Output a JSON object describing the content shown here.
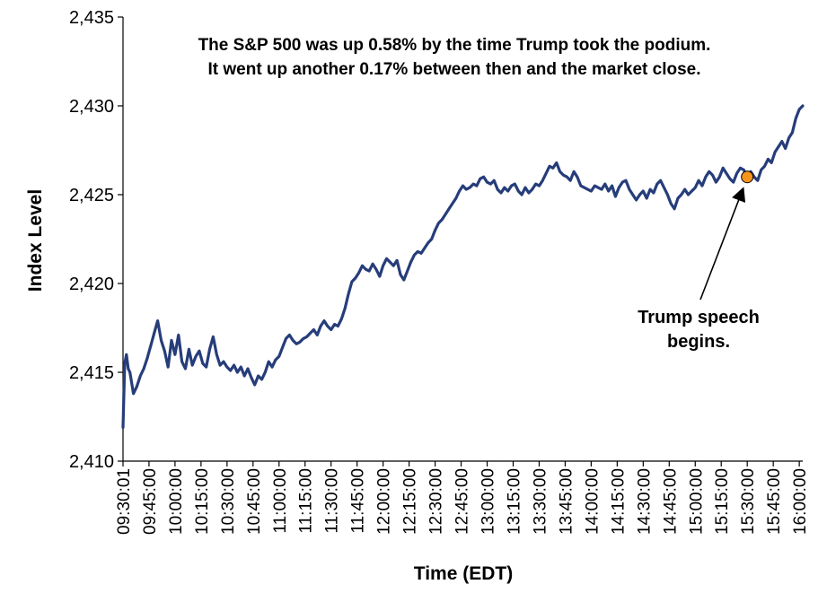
{
  "chart_data": {
    "type": "line",
    "title_lines": [
      "The S&P 500 was up 0.58% by the time Trump took the podium.",
      "It went up another 0.17% between then and the market close."
    ],
    "xlabel": "Time (EDT)",
    "ylabel": "Index Level",
    "ylim": [
      2410,
      2435
    ],
    "yticks": [
      2410,
      2415,
      2420,
      2425,
      2430,
      2435
    ],
    "ytick_labels": [
      "2,410",
      "2,415",
      "2,420",
      "2,425",
      "2,430",
      "2,435"
    ],
    "xlim": [
      "09:30:01",
      "16:02:00"
    ],
    "xtick_labels": [
      "09:30:01",
      "09:45:00",
      "10:00:00",
      "10:15:00",
      "10:30:00",
      "10:45:00",
      "11:00:00",
      "11:15:00",
      "11:30:00",
      "11:45:00",
      "12:00:00",
      "12:15:00",
      "12:30:00",
      "12:45:00",
      "13:00:00",
      "13:15:00",
      "13:30:00",
      "13:45:00",
      "14:00:00",
      "14:15:00",
      "14:30:00",
      "14:45:00",
      "15:00:00",
      "15:15:00",
      "15:30:00",
      "15:45:00",
      "16:00:00"
    ],
    "grid": false,
    "legend": "none",
    "series": [
      {
        "color": "#263d7a",
        "points": [
          [
            "09:30:01",
            2411.9
          ],
          [
            "09:31",
            2415.5
          ],
          [
            "09:32",
            2416.0
          ],
          [
            "09:33",
            2415.2
          ],
          [
            "09:34",
            2415.0
          ],
          [
            "09:36",
            2413.8
          ],
          [
            "09:38",
            2414.2
          ],
          [
            "09:40",
            2414.8
          ],
          [
            "09:42",
            2415.2
          ],
          [
            "09:44",
            2415.8
          ],
          [
            "09:46",
            2416.5
          ],
          [
            "09:48",
            2417.2
          ],
          [
            "09:50",
            2417.9
          ],
          [
            "09:52",
            2416.8
          ],
          [
            "09:54",
            2416.2
          ],
          [
            "09:56",
            2415.3
          ],
          [
            "09:58",
            2416.8
          ],
          [
            "10:00",
            2416.0
          ],
          [
            "10:02",
            2417.1
          ],
          [
            "10:04",
            2415.6
          ],
          [
            "10:06",
            2415.2
          ],
          [
            "10:08",
            2416.3
          ],
          [
            "10:10",
            2415.4
          ],
          [
            "10:12",
            2415.9
          ],
          [
            "10:14",
            2416.2
          ],
          [
            "10:16",
            2415.5
          ],
          [
            "10:18",
            2415.3
          ],
          [
            "10:20",
            2416.3
          ],
          [
            "10:22",
            2417.0
          ],
          [
            "10:24",
            2416.0
          ],
          [
            "10:26",
            2415.4
          ],
          [
            "10:28",
            2415.6
          ],
          [
            "10:30",
            2415.3
          ],
          [
            "10:32",
            2415.1
          ],
          [
            "10:34",
            2415.4
          ],
          [
            "10:36",
            2415.0
          ],
          [
            "10:38",
            2415.3
          ],
          [
            "10:40",
            2414.8
          ],
          [
            "10:42",
            2415.2
          ],
          [
            "10:44",
            2414.7
          ],
          [
            "10:46",
            2414.3
          ],
          [
            "10:48",
            2414.8
          ],
          [
            "10:50",
            2414.6
          ],
          [
            "10:52",
            2415.0
          ],
          [
            "10:54",
            2415.6
          ],
          [
            "10:56",
            2415.3
          ],
          [
            "10:58",
            2415.7
          ],
          [
            "11:00",
            2415.9
          ],
          [
            "11:02",
            2416.4
          ],
          [
            "11:04",
            2416.9
          ],
          [
            "11:06",
            2417.1
          ],
          [
            "11:08",
            2416.8
          ],
          [
            "11:10",
            2416.6
          ],
          [
            "11:12",
            2416.7
          ],
          [
            "11:14",
            2416.9
          ],
          [
            "11:16",
            2417.0
          ],
          [
            "11:18",
            2417.2
          ],
          [
            "11:20",
            2417.4
          ],
          [
            "11:22",
            2417.1
          ],
          [
            "11:24",
            2417.6
          ],
          [
            "11:26",
            2417.9
          ],
          [
            "11:28",
            2417.6
          ],
          [
            "11:30",
            2417.4
          ],
          [
            "11:32",
            2417.7
          ],
          [
            "11:34",
            2417.6
          ],
          [
            "11:36",
            2418.0
          ],
          [
            "11:38",
            2418.6
          ],
          [
            "11:40",
            2419.4
          ],
          [
            "11:42",
            2420.1
          ],
          [
            "11:44",
            2420.3
          ],
          [
            "11:46",
            2420.6
          ],
          [
            "11:48",
            2421.0
          ],
          [
            "11:50",
            2420.8
          ],
          [
            "11:52",
            2420.7
          ],
          [
            "11:54",
            2421.1
          ],
          [
            "11:56",
            2420.8
          ],
          [
            "11:58",
            2420.4
          ],
          [
            "12:00",
            2421.0
          ],
          [
            "12:02",
            2421.4
          ],
          [
            "12:04",
            2421.2
          ],
          [
            "12:06",
            2421.0
          ],
          [
            "12:08",
            2421.3
          ],
          [
            "12:10",
            2420.5
          ],
          [
            "12:12",
            2420.2
          ],
          [
            "12:14",
            2420.7
          ],
          [
            "12:16",
            2421.2
          ],
          [
            "12:18",
            2421.6
          ],
          [
            "12:20",
            2421.8
          ],
          [
            "12:22",
            2421.7
          ],
          [
            "12:24",
            2422.0
          ],
          [
            "12:26",
            2422.3
          ],
          [
            "12:28",
            2422.5
          ],
          [
            "12:30",
            2423.0
          ],
          [
            "12:32",
            2423.4
          ],
          [
            "12:34",
            2423.6
          ],
          [
            "12:36",
            2423.9
          ],
          [
            "12:38",
            2424.2
          ],
          [
            "12:40",
            2424.5
          ],
          [
            "12:42",
            2424.8
          ],
          [
            "12:44",
            2425.2
          ],
          [
            "12:46",
            2425.5
          ],
          [
            "12:48",
            2425.3
          ],
          [
            "12:50",
            2425.4
          ],
          [
            "12:52",
            2425.6
          ],
          [
            "12:54",
            2425.5
          ],
          [
            "12:56",
            2425.9
          ],
          [
            "12:58",
            2426.0
          ],
          [
            "13:00",
            2425.7
          ],
          [
            "13:02",
            2425.6
          ],
          [
            "13:04",
            2425.8
          ],
          [
            "13:06",
            2425.3
          ],
          [
            "13:08",
            2425.1
          ],
          [
            "13:10",
            2425.4
          ],
          [
            "13:12",
            2425.2
          ],
          [
            "13:14",
            2425.5
          ],
          [
            "13:16",
            2425.6
          ],
          [
            "13:18",
            2425.2
          ],
          [
            "13:20",
            2425.0
          ],
          [
            "13:22",
            2425.4
          ],
          [
            "13:24",
            2425.1
          ],
          [
            "13:26",
            2425.3
          ],
          [
            "13:28",
            2425.6
          ],
          [
            "13:30",
            2425.5
          ],
          [
            "13:32",
            2425.8
          ],
          [
            "13:34",
            2426.2
          ],
          [
            "13:36",
            2426.6
          ],
          [
            "13:38",
            2426.5
          ],
          [
            "13:40",
            2426.8
          ],
          [
            "13:42",
            2426.3
          ],
          [
            "13:44",
            2426.1
          ],
          [
            "13:46",
            2426.0
          ],
          [
            "13:48",
            2425.8
          ],
          [
            "13:50",
            2426.3
          ],
          [
            "13:52",
            2426.0
          ],
          [
            "13:54",
            2425.5
          ],
          [
            "13:56",
            2425.4
          ],
          [
            "13:58",
            2425.3
          ],
          [
            "14:00",
            2425.2
          ],
          [
            "14:02",
            2425.5
          ],
          [
            "14:04",
            2425.4
          ],
          [
            "14:06",
            2425.3
          ],
          [
            "14:08",
            2425.6
          ],
          [
            "14:10",
            2425.2
          ],
          [
            "14:12",
            2425.5
          ],
          [
            "14:14",
            2424.9
          ],
          [
            "14:16",
            2425.4
          ],
          [
            "14:18",
            2425.7
          ],
          [
            "14:20",
            2425.8
          ],
          [
            "14:22",
            2425.3
          ],
          [
            "14:24",
            2425.0
          ],
          [
            "14:26",
            2424.7
          ],
          [
            "14:28",
            2425.0
          ],
          [
            "14:30",
            2425.2
          ],
          [
            "14:32",
            2424.8
          ],
          [
            "14:34",
            2425.3
          ],
          [
            "14:36",
            2425.1
          ],
          [
            "14:38",
            2425.6
          ],
          [
            "14:40",
            2425.8
          ],
          [
            "14:42",
            2425.4
          ],
          [
            "14:44",
            2425.0
          ],
          [
            "14:46",
            2424.5
          ],
          [
            "14:48",
            2424.2
          ],
          [
            "14:50",
            2424.8
          ],
          [
            "14:52",
            2425.0
          ],
          [
            "14:54",
            2425.3
          ],
          [
            "14:56",
            2425.0
          ],
          [
            "14:58",
            2425.2
          ],
          [
            "15:00",
            2425.4
          ],
          [
            "15:02",
            2425.8
          ],
          [
            "15:04",
            2425.5
          ],
          [
            "15:06",
            2426.0
          ],
          [
            "15:08",
            2426.3
          ],
          [
            "15:10",
            2426.1
          ],
          [
            "15:12",
            2425.7
          ],
          [
            "15:14",
            2426.0
          ],
          [
            "15:16",
            2426.5
          ],
          [
            "15:18",
            2426.2
          ],
          [
            "15:20",
            2425.9
          ],
          [
            "15:22",
            2425.7
          ],
          [
            "15:24",
            2426.2
          ],
          [
            "15:26",
            2426.5
          ],
          [
            "15:28",
            2426.4
          ],
          [
            "15:30",
            2426.0
          ],
          [
            "15:32",
            2426.3
          ],
          [
            "15:34",
            2426.0
          ],
          [
            "15:36",
            2425.8
          ],
          [
            "15:38",
            2426.4
          ],
          [
            "15:40",
            2426.6
          ],
          [
            "15:42",
            2427.0
          ],
          [
            "15:44",
            2426.8
          ],
          [
            "15:46",
            2427.4
          ],
          [
            "15:48",
            2427.7
          ],
          [
            "15:50",
            2428.0
          ],
          [
            "15:52",
            2427.6
          ],
          [
            "15:54",
            2428.2
          ],
          [
            "15:56",
            2428.5
          ],
          [
            "15:58",
            2429.3
          ],
          [
            "16:00",
            2429.8
          ],
          [
            "16:02",
            2430.0
          ]
        ]
      }
    ],
    "marker": {
      "time": "15:30",
      "value": 2426.0,
      "color": "#f7941d"
    },
    "annotation_lines": [
      "Trump speech",
      "begins."
    ]
  }
}
